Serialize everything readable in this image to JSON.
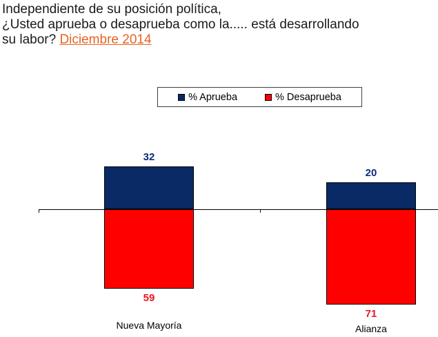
{
  "title": {
    "line1": "Independiente de su posición política,",
    "line2": "¿Usted aprueba o desaprueba como la..... está desarrollando",
    "line3_prefix": "su labor? ",
    "line3_link": "Diciembre 2014"
  },
  "legend": {
    "items": [
      {
        "label": "% Aprueba",
        "color": "#0a2a66"
      },
      {
        "label": "% Desaprueba",
        "color": "#fe0000"
      }
    ]
  },
  "colors": {
    "approve_bar": "#0a2a66",
    "disapprove_bar": "#fe0000",
    "approve_label": "#0e2b7a",
    "disapprove_label": "#ee1422",
    "link_orange": "#e8631f",
    "axis": "#000000",
    "text": "#1a1a1a"
  },
  "chart_data": {
    "type": "bar",
    "orientation": "diverging-vertical",
    "title": "Independiente de su posición política, ¿Usted aprueba o desaprueba como la..... está desarrollando su labor? Diciembre 2014",
    "categories": [
      "Nueva Mayoría",
      "Alianza"
    ],
    "series": [
      {
        "name": "% Aprueba",
        "direction": "up",
        "color": "#0a2a66",
        "values": [
          32,
          20
        ]
      },
      {
        "name": "% Desaprueba",
        "direction": "down",
        "color": "#fe0000",
        "values": [
          59,
          71
        ]
      }
    ],
    "baseline": 0,
    "value_unit": "percent",
    "data_labels": true,
    "legend_position": "top-center",
    "grid": false,
    "xlabel": "",
    "ylabel": ""
  }
}
